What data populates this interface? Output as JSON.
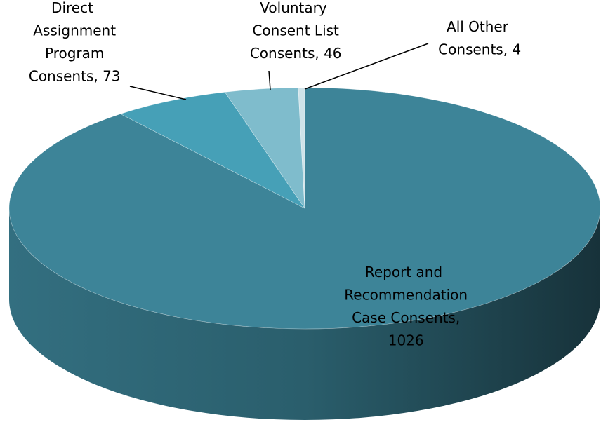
{
  "chart_data": {
    "type": "pie",
    "values": [
      1026,
      73,
      46,
      4
    ],
    "value_labels": [
      "Report and Recommendation Case Consents, 1026",
      "Direct Assignment Program Consents, 73",
      "Voluntary Consent List Consents, 46",
      "All Other Consents, 4"
    ],
    "colors": [
      "#3d8498",
      "#46a0b7",
      "#7fbccc",
      "#cfe3e9"
    ]
  }
}
